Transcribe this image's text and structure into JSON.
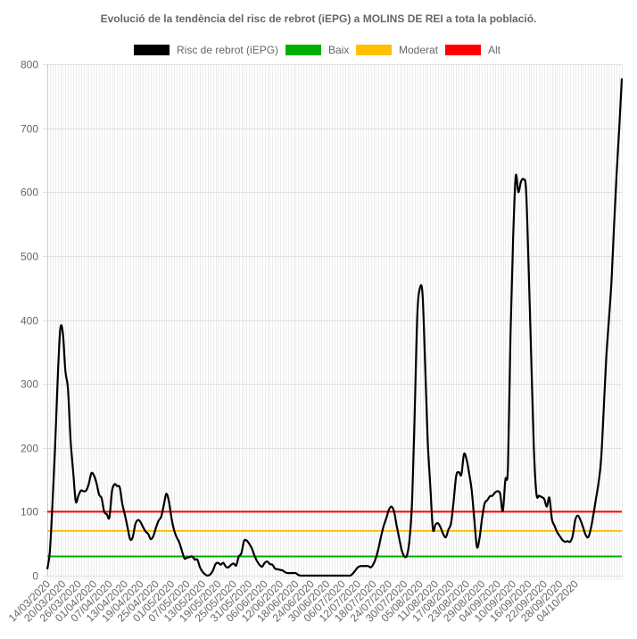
{
  "chart_data": {
    "type": "line",
    "title": "Evolució de la tendència del risc de rebrot (iEPG) a MOLINS DE REI a tota la població.",
    "xlabel": "",
    "ylabel": "",
    "ylim": [
      0,
      800
    ],
    "y_ticks": [
      0,
      100,
      200,
      300,
      400,
      500,
      600,
      700,
      800
    ],
    "grid": true,
    "legend_position": "top",
    "x_tick_labels": [
      "14/03/2020",
      "20/03/2020",
      "26/03/2020",
      "01/04/2020",
      "07/04/2020",
      "13/04/2020",
      "19/04/2020",
      "25/04/2020",
      "01/05/2020",
      "07/05/2020",
      "13/05/2020",
      "19/05/2020",
      "25/05/2020",
      "31/05/2020",
      "06/06/2020",
      "12/06/2020",
      "18/06/2020",
      "24/06/2020",
      "30/06/2020",
      "06/07/2020",
      "12/07/2020",
      "18/07/2020",
      "24/07/2020",
      "30/07/2020",
      "05/08/2020",
      "11/08/2020",
      "17/08/2020",
      "23/08/2020",
      "29/08/2020",
      "04/09/2020",
      "10/09/2020",
      "16/09/2020",
      "22/09/2020",
      "28/09/2020",
      "04/10/2020"
    ],
    "series": [
      {
        "name": "Risc de rebrot (iEPG)",
        "color": "#000000",
        "values": [
          10,
          38,
          112,
          200,
          305,
          385,
          380,
          320,
          292,
          212,
          163,
          116,
          125,
          133,
          132,
          133,
          143,
          160,
          157,
          145,
          127,
          121,
          100,
          96,
          91,
          132,
          143,
          140,
          138,
          112,
          95,
          76,
          57,
          60,
          80,
          87,
          84,
          76,
          69,
          65,
          57,
          62,
          75,
          86,
          92,
          110,
          128,
          116,
          90,
          71,
          60,
          52,
          39,
          27,
          28,
          29,
          30,
          25,
          25,
          13,
          6,
          2,
          0,
          2,
          8,
          18,
          20,
          17,
          20,
          14,
          13,
          17,
          19,
          16,
          30,
          35,
          54,
          55,
          50,
          43,
          32,
          23,
          17,
          14,
          20,
          22,
          18,
          17,
          11,
          10,
          9,
          8,
          5,
          4,
          4,
          4,
          4,
          1,
          0,
          0,
          0,
          0,
          0,
          0,
          0,
          0,
          0,
          0,
          0,
          0,
          0,
          0,
          0,
          0,
          0,
          0,
          0,
          0,
          3,
          8,
          13,
          15,
          15,
          15,
          15,
          13,
          18,
          28,
          43,
          62,
          78,
          90,
          103,
          108,
          100,
          78,
          58,
          39,
          30,
          32,
          58,
          120,
          260,
          410,
          450,
          440,
          330,
          210,
          140,
          73,
          80,
          82,
          75,
          65,
          60,
          72,
          82,
          116,
          156,
          162,
          158,
          190,
          182,
          160,
          133,
          88,
          45,
          58,
          90,
          113,
          118,
          124,
          125,
          130,
          132,
          128,
          101,
          150,
          170,
          380,
          528,
          625,
          600,
          616,
          620,
          603,
          480,
          340,
          200,
          128,
          125,
          123,
          120,
          108,
          122,
          88,
          78,
          68,
          62,
          56,
          53,
          54,
          53,
          62,
          87,
          94,
          87,
          76,
          64,
          60,
          73,
          95,
          120,
          145,
          182,
          260,
          342,
          400,
          460,
          548,
          630,
          700,
          778
        ]
      },
      {
        "name": "Baix",
        "color": "#00b000",
        "constant": 30
      },
      {
        "name": "Moderat",
        "color": "#ffc000",
        "constant": 70
      },
      {
        "name": "Alt",
        "color": "#ff0000",
        "constant": 100
      }
    ]
  }
}
